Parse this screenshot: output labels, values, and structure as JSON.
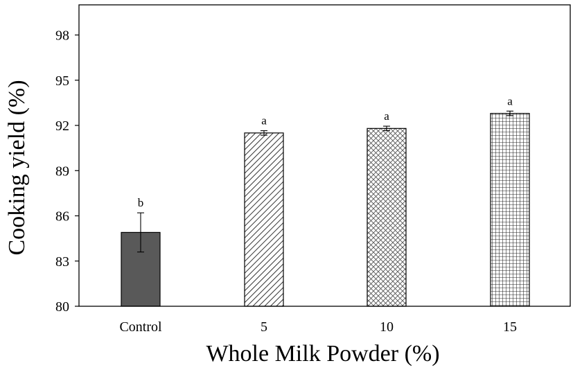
{
  "chart_data": {
    "type": "bar",
    "title": "",
    "xlabel": "Whole Milk Powder (%)",
    "ylabel": "Cooking yield (%)",
    "ylim": [
      80,
      100
    ],
    "yticks": [
      80,
      83,
      86,
      89,
      92,
      95,
      98
    ],
    "categories": [
      "Control",
      "5",
      "10",
      "15"
    ],
    "values": [
      84.9,
      91.5,
      91.8,
      92.8
    ],
    "errors": [
      1.3,
      0.15,
      0.15,
      0.15
    ],
    "significance": [
      "b",
      "a",
      "a",
      "a"
    ],
    "bar_fills": [
      "solid-dark",
      "diagonal-hatch",
      "crosshatch",
      "grid"
    ],
    "grid": false,
    "legend": "none"
  }
}
